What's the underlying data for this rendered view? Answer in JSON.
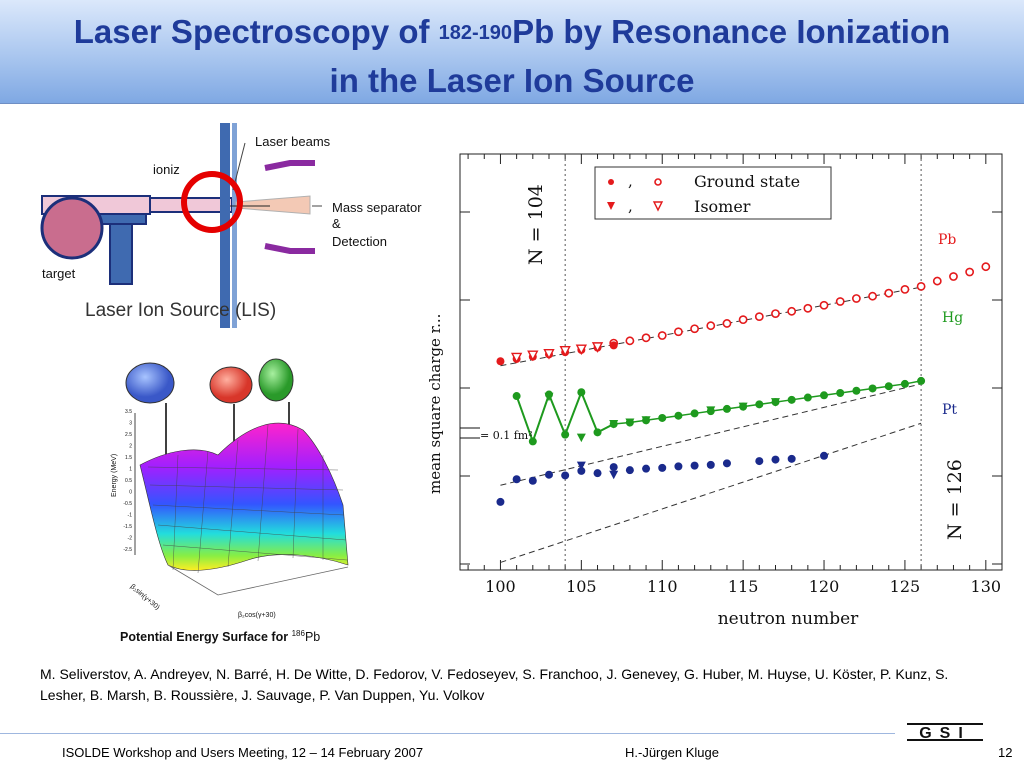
{
  "slide": {
    "title_part1": "Laser Spectroscopy of ",
    "title_sup": "182-190",
    "title_part2": "Pb by Resonance Ionization",
    "title_line2": "in the Laser Ion Source"
  },
  "lis_figure": {
    "label_ionizer": "ioniz",
    "label_laser_beams": "Laser beams",
    "label_mass_sep_1": "Mass separator",
    "label_mass_sep_2": "&",
    "label_mass_sep_3": "Detection",
    "label_target": "target",
    "caption": "Laser Ion Source (LIS)"
  },
  "pes_figure": {
    "caption_text": "Potential Energy Surface for ",
    "caption_sup": "186",
    "caption_elem": "Pb",
    "z_axis_label": "Energy (MeV)",
    "x_axis_label": "β₂cos(γ+30)",
    "y_axis_label": "β₂sin(γ+30)",
    "z_ticks": [
      "3.5",
      "3",
      "2.5",
      "2",
      "1.5",
      "1",
      "0.5",
      "0",
      "-0.5",
      "-1",
      "-1.5",
      "-2",
      "-2.5"
    ]
  },
  "chart_data": {
    "type": "scatter",
    "xlabel": "neutron number",
    "ylabel": "mean square charge r...",
    "xlim": [
      97.5,
      131
    ],
    "ylim": [
      -1.35,
      1.4
    ],
    "x_ticks": [
      100,
      105,
      110,
      115,
      120,
      125,
      130
    ],
    "legend": {
      "position": "top-right",
      "ground_state": "Ground state",
      "isomer": "Isomer",
      "separator": ","
    },
    "element_labels": [
      "Pb",
      "Hg",
      "Pt"
    ],
    "scale_bar_label": "= 0.1 fm²",
    "vertical_lines": [
      {
        "x": 104,
        "label": "N = 104"
      },
      {
        "x": 126,
        "label": "N = 126"
      }
    ],
    "colors": {
      "Pb": "#e41a1c",
      "Hg": "#1e9a1e",
      "Pt": "#1a2a8c"
    },
    "series": [
      {
        "name": "Pb",
        "marker": "open-circle",
        "x": [
          107,
          108,
          109,
          110,
          111,
          112,
          113,
          114,
          115,
          116,
          117,
          118,
          119,
          120,
          121,
          122,
          123,
          124,
          125,
          126,
          127,
          128,
          129,
          130
        ],
        "y": [
          0.15,
          0.165,
          0.185,
          0.2,
          0.225,
          0.245,
          0.265,
          0.28,
          0.305,
          0.325,
          0.345,
          0.36,
          0.38,
          0.4,
          0.425,
          0.445,
          0.46,
          0.48,
          0.505,
          0.525,
          0.56,
          0.59,
          0.62,
          0.655
        ]
      },
      {
        "name": "Pb",
        "marker": "filled-circle",
        "x": [
          100,
          101,
          102,
          103,
          104,
          105,
          106,
          107
        ],
        "y": [
          0.03,
          0.045,
          0.06,
          0.075,
          0.09,
          0.105,
          0.12,
          0.135
        ]
      },
      {
        "name": "Pb",
        "marker": "open-triangle",
        "x": [
          101,
          102,
          103,
          104,
          105,
          106
        ],
        "y": [
          0.055,
          0.07,
          0.08,
          0.1,
          0.11,
          0.125
        ]
      },
      {
        "name": "Hg",
        "marker": "filled-circle",
        "x": [
          101,
          102,
          103,
          104,
          105,
          106,
          107,
          108,
          109,
          110,
          111,
          112,
          113,
          114,
          115,
          116,
          117,
          118,
          119,
          120,
          121,
          122,
          123,
          124,
          125,
          126
        ],
        "y": [
          -0.2,
          -0.5,
          -0.19,
          -0.455,
          -0.175,
          -0.44,
          -0.385,
          -0.375,
          -0.36,
          -0.345,
          -0.33,
          -0.315,
          -0.3,
          -0.285,
          -0.27,
          -0.255,
          -0.24,
          -0.225,
          -0.21,
          -0.195,
          -0.18,
          -0.165,
          -0.15,
          -0.135,
          -0.12,
          -0.1
        ]
      },
      {
        "name": "Hg",
        "marker": "filled-triangle",
        "x": [
          103,
          105,
          107,
          108,
          109,
          113,
          115,
          117
        ],
        "y": [
          -0.205,
          -0.475,
          -0.385,
          -0.375,
          -0.36,
          -0.295,
          -0.27,
          -0.24
        ]
      },
      {
        "name": "Pt",
        "marker": "filled-circle",
        "x": [
          100,
          101,
          102,
          103,
          104,
          105,
          106,
          107,
          108,
          109,
          110,
          111,
          112,
          113,
          114,
          116,
          117,
          118,
          120
        ],
        "y": [
          -0.9,
          -0.75,
          -0.76,
          -0.72,
          -0.725,
          -0.695,
          -0.71,
          -0.67,
          -0.69,
          -0.68,
          -0.675,
          -0.665,
          -0.66,
          -0.655,
          -0.645,
          -0.63,
          -0.62,
          -0.615,
          -0.595
        ]
      },
      {
        "name": "Pt",
        "marker": "filled-triangle",
        "x": [
          105,
          107
        ],
        "y": [
          -0.66,
          -0.72
        ]
      }
    ]
  },
  "authors": "M. Seliverstov, A. Andreyev, N. Barré, H. De Witte, D. Fedorov, V. Fedoseyev, S. Franchoo, J. Genevey, G. Huber, M. Huyse, U. Köster, P. Kunz, S. Lesher, B. Marsh, B. Roussière, J. Sauvage, P. Van Duppen, Yu. Volkov",
  "footer": {
    "event": "ISOLDE Workshop and Users Meeting, 12 – 14  February 2007",
    "presenter": "H.-Jürgen Kluge",
    "slide_number": "12",
    "logo_text": "GSI"
  }
}
